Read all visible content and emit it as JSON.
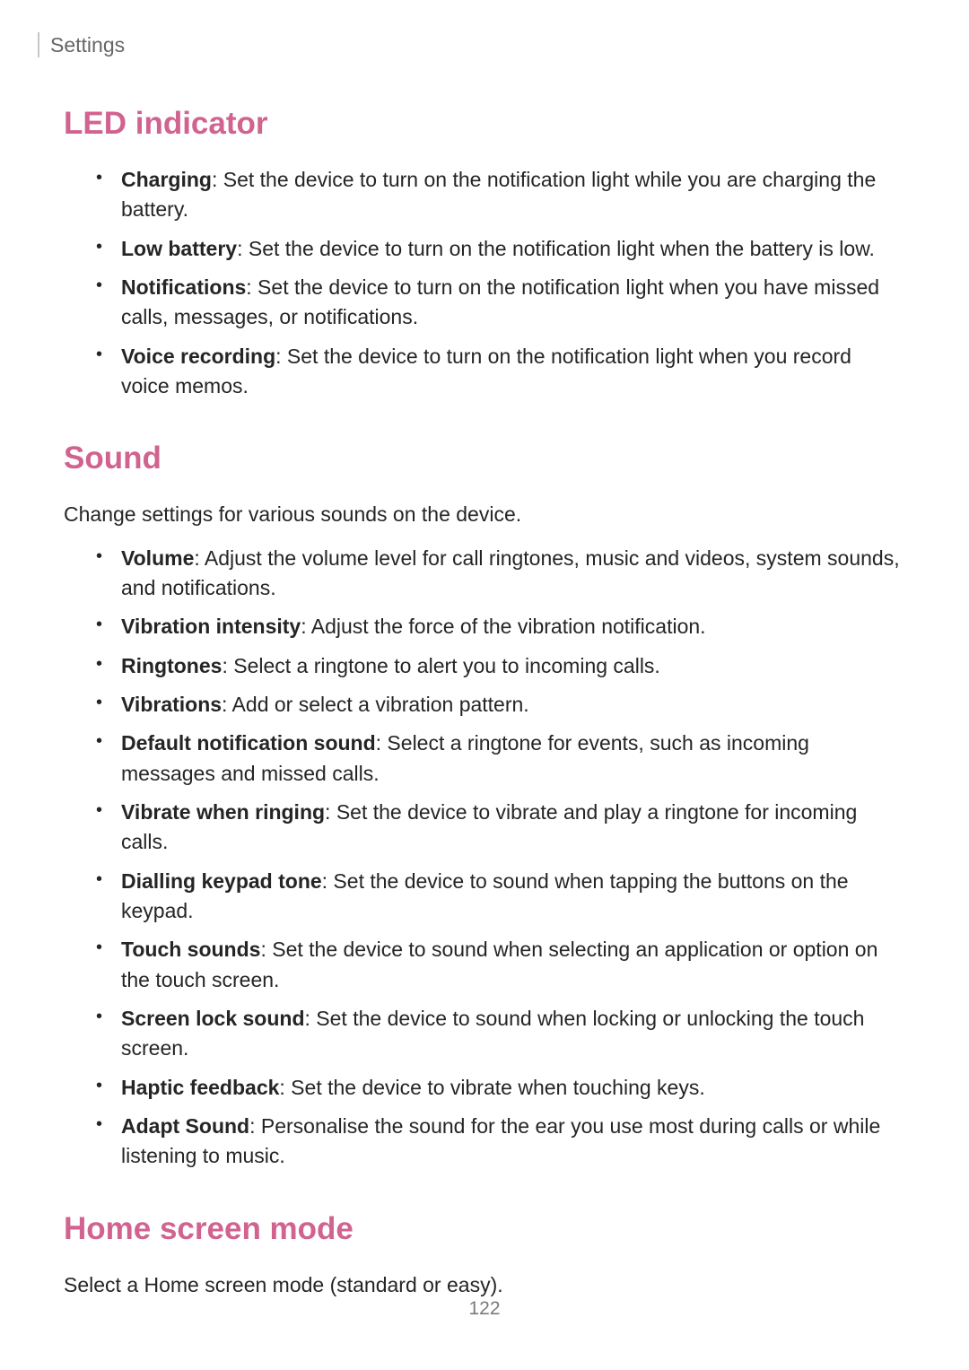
{
  "breadcrumb": "Settings",
  "page_number": "122",
  "colors": {
    "heading": "#d0638f",
    "body": "#252525",
    "breadcrumb": "#666666",
    "page_num": "#7b7b7b",
    "bar": "#c7c7c7"
  },
  "sections": {
    "led": {
      "title": "LED indicator",
      "items": [
        {
          "label": "Charging",
          "desc": ": Set the device to turn on the notification light while you are charging the battery."
        },
        {
          "label": "Low battery",
          "desc": ": Set the device to turn on the notification light when the battery is low."
        },
        {
          "label": "Notifications",
          "desc": ": Set the device to turn on the notification light when you have missed calls, messages, or notifications."
        },
        {
          "label": "Voice recording",
          "desc": ": Set the device to turn on the notification light when you record voice memos."
        }
      ]
    },
    "sound": {
      "title": "Sound",
      "intro": "Change settings for various sounds on the device.",
      "items": [
        {
          "label": "Volume",
          "desc": ": Adjust the volume level for call ringtones, music and videos, system sounds, and notifications."
        },
        {
          "label": "Vibration intensity",
          "desc": ": Adjust the force of the vibration notification."
        },
        {
          "label": "Ringtones",
          "desc": ": Select a ringtone to alert you to incoming calls."
        },
        {
          "label": "Vibrations",
          "desc": ": Add or select a vibration pattern."
        },
        {
          "label": "Default notification sound",
          "desc": ": Select a ringtone for events, such as incoming messages and missed calls."
        },
        {
          "label": "Vibrate when ringing",
          "desc": ": Set the device to vibrate and play a ringtone for incoming calls."
        },
        {
          "label": "Dialling keypad tone",
          "desc": ": Set the device to sound when tapping the buttons on the keypad."
        },
        {
          "label": "Touch sounds",
          "desc": ": Set the device to sound when selecting an application or option on the touch screen."
        },
        {
          "label": "Screen lock sound",
          "desc": ": Set the device to sound when locking or unlocking the touch screen."
        },
        {
          "label": "Haptic feedback",
          "desc": ": Set the device to vibrate when touching keys."
        },
        {
          "label": "Adapt Sound",
          "desc": ": Personalise the sound for the ear you use most during calls or while listening to music."
        }
      ]
    },
    "home": {
      "title": "Home screen mode",
      "intro": "Select a Home screen mode (standard or easy)."
    }
  }
}
